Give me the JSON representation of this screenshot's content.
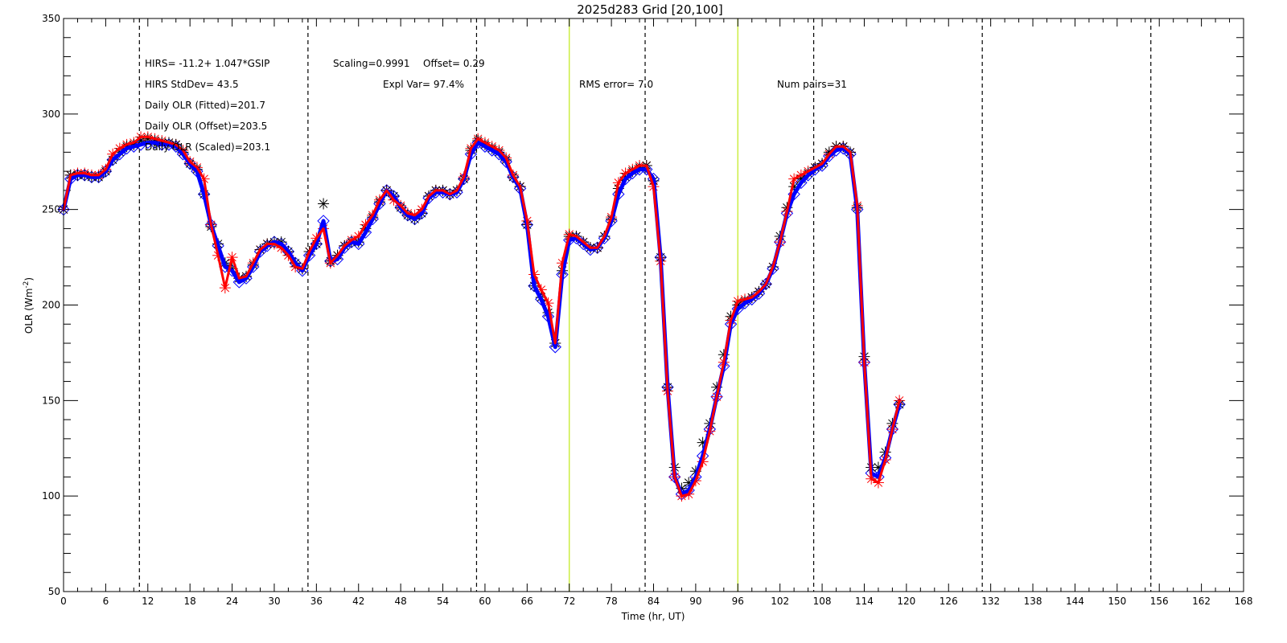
{
  "chart_data": {
    "type": "line",
    "title": "2025d283 Grid [20,100]",
    "xlabel": "Time (hr, UT)",
    "ylabel": "OLR (Wm",
    "ylabel_sup": "-2",
    "ylabel_close": ")",
    "xlim": [
      0,
      168
    ],
    "ylim": [
      50,
      350
    ],
    "x_ticks": [
      0,
      6,
      12,
      18,
      24,
      30,
      36,
      42,
      48,
      54,
      60,
      66,
      72,
      78,
      84,
      90,
      96,
      102,
      108,
      114,
      120,
      126,
      132,
      138,
      144,
      150,
      156,
      162,
      168
    ],
    "y_ticks": [
      50,
      100,
      150,
      200,
      250,
      300,
      350
    ],
    "dashed_vlines": [
      10.8,
      34.8,
      58.8,
      82.8,
      106.8,
      130.8,
      154.8
    ],
    "highlight_vlines": [
      72,
      96
    ],
    "highlight_color": "#ccee44",
    "annotations": {
      "line1_a": "HIRS=  -11.2+  1.047*GSIP",
      "line1_b": "Scaling=0.9991",
      "line1_c": "Offset=  0.29",
      "line2_a": "HIRS StdDev= 43.5",
      "line2_b": "Expl Var= 97.4%",
      "line2_c": "RMS error=  7.0",
      "line2_d": "Num pairs=31",
      "line3": "Daily OLR (Fitted)=201.7",
      "line4": "Daily OLR (Offset)=203.5",
      "line5": "Daily OLR (Scaled)=203.1"
    },
    "series": [
      {
        "color": "#0000ff",
        "marker": "diamond",
        "x": [
          0,
          1,
          2,
          3,
          4,
          5,
          6,
          7,
          8,
          9,
          10,
          11,
          12,
          13,
          14,
          15,
          16,
          17,
          18,
          19,
          20,
          21,
          22,
          23,
          24,
          25,
          26,
          27,
          28,
          29,
          30,
          31,
          32,
          33,
          34,
          35,
          36,
          37,
          38,
          39,
          40,
          41,
          42,
          43,
          44,
          45,
          46,
          47,
          48,
          49,
          50,
          51,
          52,
          53,
          54,
          55,
          56,
          57,
          58,
          59,
          60,
          61,
          62,
          63,
          64,
          65,
          66,
          67,
          68,
          69,
          70,
          71,
          72,
          73,
          74,
          75,
          76,
          77,
          78,
          79,
          80,
          81,
          82,
          83,
          84,
          85,
          86,
          87,
          88,
          89,
          90,
          91,
          92,
          93,
          94,
          95,
          96,
          97,
          98,
          99,
          100,
          101,
          102,
          103,
          104,
          105,
          106,
          107,
          108,
          109,
          110,
          111,
          112,
          113,
          114,
          115,
          116,
          117,
          118,
          119
        ],
        "y": [
          250,
          266,
          268,
          268,
          267,
          267,
          270,
          276,
          279,
          282,
          283,
          284,
          285,
          285,
          284,
          284,
          283,
          279,
          274,
          270,
          258,
          242,
          231,
          220,
          218,
          212,
          214,
          220,
          228,
          231,
          233,
          232,
          228,
          222,
          218,
          226,
          232,
          244,
          223,
          224,
          230,
          233,
          232,
          238,
          245,
          253,
          260,
          257,
          251,
          247,
          245,
          248,
          256,
          259,
          259,
          258,
          259,
          266,
          279,
          285,
          283,
          281,
          279,
          275,
          267,
          261,
          242,
          210,
          203,
          194,
          178,
          216,
          234,
          235,
          232,
          229,
          230,
          235,
          244,
          258,
          266,
          269,
          271,
          271,
          266,
          225,
          157,
          110,
          101,
          103,
          110,
          121,
          135,
          152,
          168,
          190,
          198,
          201,
          203,
          206,
          211,
          219,
          233,
          248,
          258,
          264,
          268,
          271,
          273,
          278,
          281,
          282,
          279,
          250,
          170,
          112,
          110,
          120,
          135,
          148
        ]
      },
      {
        "color": "#ff0000",
        "marker": "asterisk",
        "x": [
          0,
          1,
          2,
          3,
          4,
          5,
          6,
          7,
          8,
          9,
          10,
          11,
          12,
          13,
          14,
          15,
          16,
          17,
          18,
          19,
          20,
          21,
          22,
          23,
          24,
          25,
          26,
          27,
          28,
          29,
          30,
          31,
          32,
          33,
          34,
          35,
          36,
          37,
          38,
          39,
          40,
          41,
          42,
          43,
          44,
          45,
          46,
          47,
          48,
          49,
          50,
          51,
          52,
          53,
          54,
          55,
          56,
          57,
          58,
          59,
          60,
          61,
          62,
          63,
          64,
          65,
          66,
          67,
          68,
          69,
          70,
          71,
          72,
          73,
          74,
          75,
          76,
          77,
          78,
          79,
          80,
          81,
          82,
          83,
          84,
          85,
          86,
          87,
          88,
          89,
          90,
          91,
          92,
          93,
          94,
          95,
          96,
          97,
          98,
          99,
          100,
          101,
          102,
          103,
          104,
          105,
          106,
          107,
          108,
          109,
          110,
          111,
          112,
          113,
          114,
          115,
          116,
          117,
          118,
          119
        ],
        "y": [
          250,
          268,
          269,
          269,
          268,
          268,
          271,
          279,
          282,
          284,
          285,
          288,
          288,
          287,
          286,
          285,
          284,
          281,
          275,
          272,
          266,
          242,
          226,
          209,
          225,
          214,
          215,
          222,
          229,
          232,
          232,
          230,
          226,
          220,
          219,
          228,
          235,
          240,
          222,
          226,
          231,
          234,
          236,
          242,
          247,
          255,
          260,
          255,
          252,
          248,
          247,
          250,
          257,
          260,
          260,
          258,
          260,
          267,
          282,
          287,
          285,
          283,
          281,
          277,
          268,
          262,
          244,
          216,
          208,
          201,
          180,
          222,
          237,
          236,
          233,
          230,
          230,
          236,
          246,
          264,
          269,
          271,
          273,
          273,
          262,
          223,
          155,
          110,
          100,
          101,
          108,
          118,
          134,
          152,
          170,
          192,
          202,
          203,
          204,
          207,
          211,
          220,
          233,
          249,
          266,
          268,
          270,
          272,
          274,
          279,
          283,
          283,
          280,
          252,
          170,
          109,
          107,
          119,
          135,
          150
        ]
      },
      {
        "color": "#000000",
        "marker": "asterisk",
        "x": [
          0,
          1,
          2,
          3,
          4,
          5,
          6,
          7,
          8,
          9,
          10,
          11,
          12,
          13,
          14,
          15,
          16,
          17,
          18,
          19,
          20,
          21,
          22,
          23,
          24,
          25,
          26,
          27,
          28,
          29,
          30,
          31,
          32,
          33,
          34,
          35,
          36,
          37,
          38,
          39,
          40,
          41,
          42,
          43,
          44,
          45,
          46,
          47,
          48,
          49,
          50,
          51,
          52,
          53,
          54,
          55,
          56,
          57,
          58,
          59,
          60,
          61,
          62,
          63,
          64,
          65,
          66,
          67,
          68,
          69,
          70,
          71,
          72,
          73,
          74,
          75,
          76,
          77,
          78,
          79,
          80,
          81,
          82,
          83,
          84,
          85,
          86,
          87,
          88,
          89,
          90,
          91,
          92,
          93,
          94,
          95,
          96,
          97,
          98,
          99,
          100,
          101,
          102,
          103,
          104,
          105,
          106,
          107,
          108,
          109,
          110,
          111,
          112,
          113,
          114,
          115,
          116,
          117,
          118,
          119
        ],
        "y": [
          250,
          268,
          268,
          268,
          267,
          267,
          270,
          276,
          280,
          283,
          284,
          286,
          287,
          286,
          285,
          285,
          284,
          280,
          274,
          271,
          258,
          241,
          232,
          222,
          219,
          214,
          215,
          221,
          229,
          232,
          233,
          233,
          228,
          222,
          219,
          228,
          232,
          253,
          223,
          226,
          231,
          233,
          233,
          240,
          246,
          254,
          260,
          257,
          251,
          247,
          245,
          248,
          257,
          260,
          260,
          258,
          260,
          266,
          281,
          286,
          284,
          282,
          280,
          276,
          267,
          262,
          242,
          210,
          204,
          196,
          180,
          218,
          236,
          236,
          233,
          230,
          230,
          236,
          245,
          261,
          267,
          270,
          272,
          273,
          265,
          225,
          157,
          115,
          104,
          107,
          113,
          128,
          138,
          157,
          174,
          194,
          200,
          202,
          204,
          207,
          211,
          220,
          236,
          251,
          262,
          266,
          269,
          272,
          274,
          280,
          283,
          283,
          280,
          251,
          173,
          115,
          115,
          123,
          138,
          148
        ]
      }
    ]
  }
}
